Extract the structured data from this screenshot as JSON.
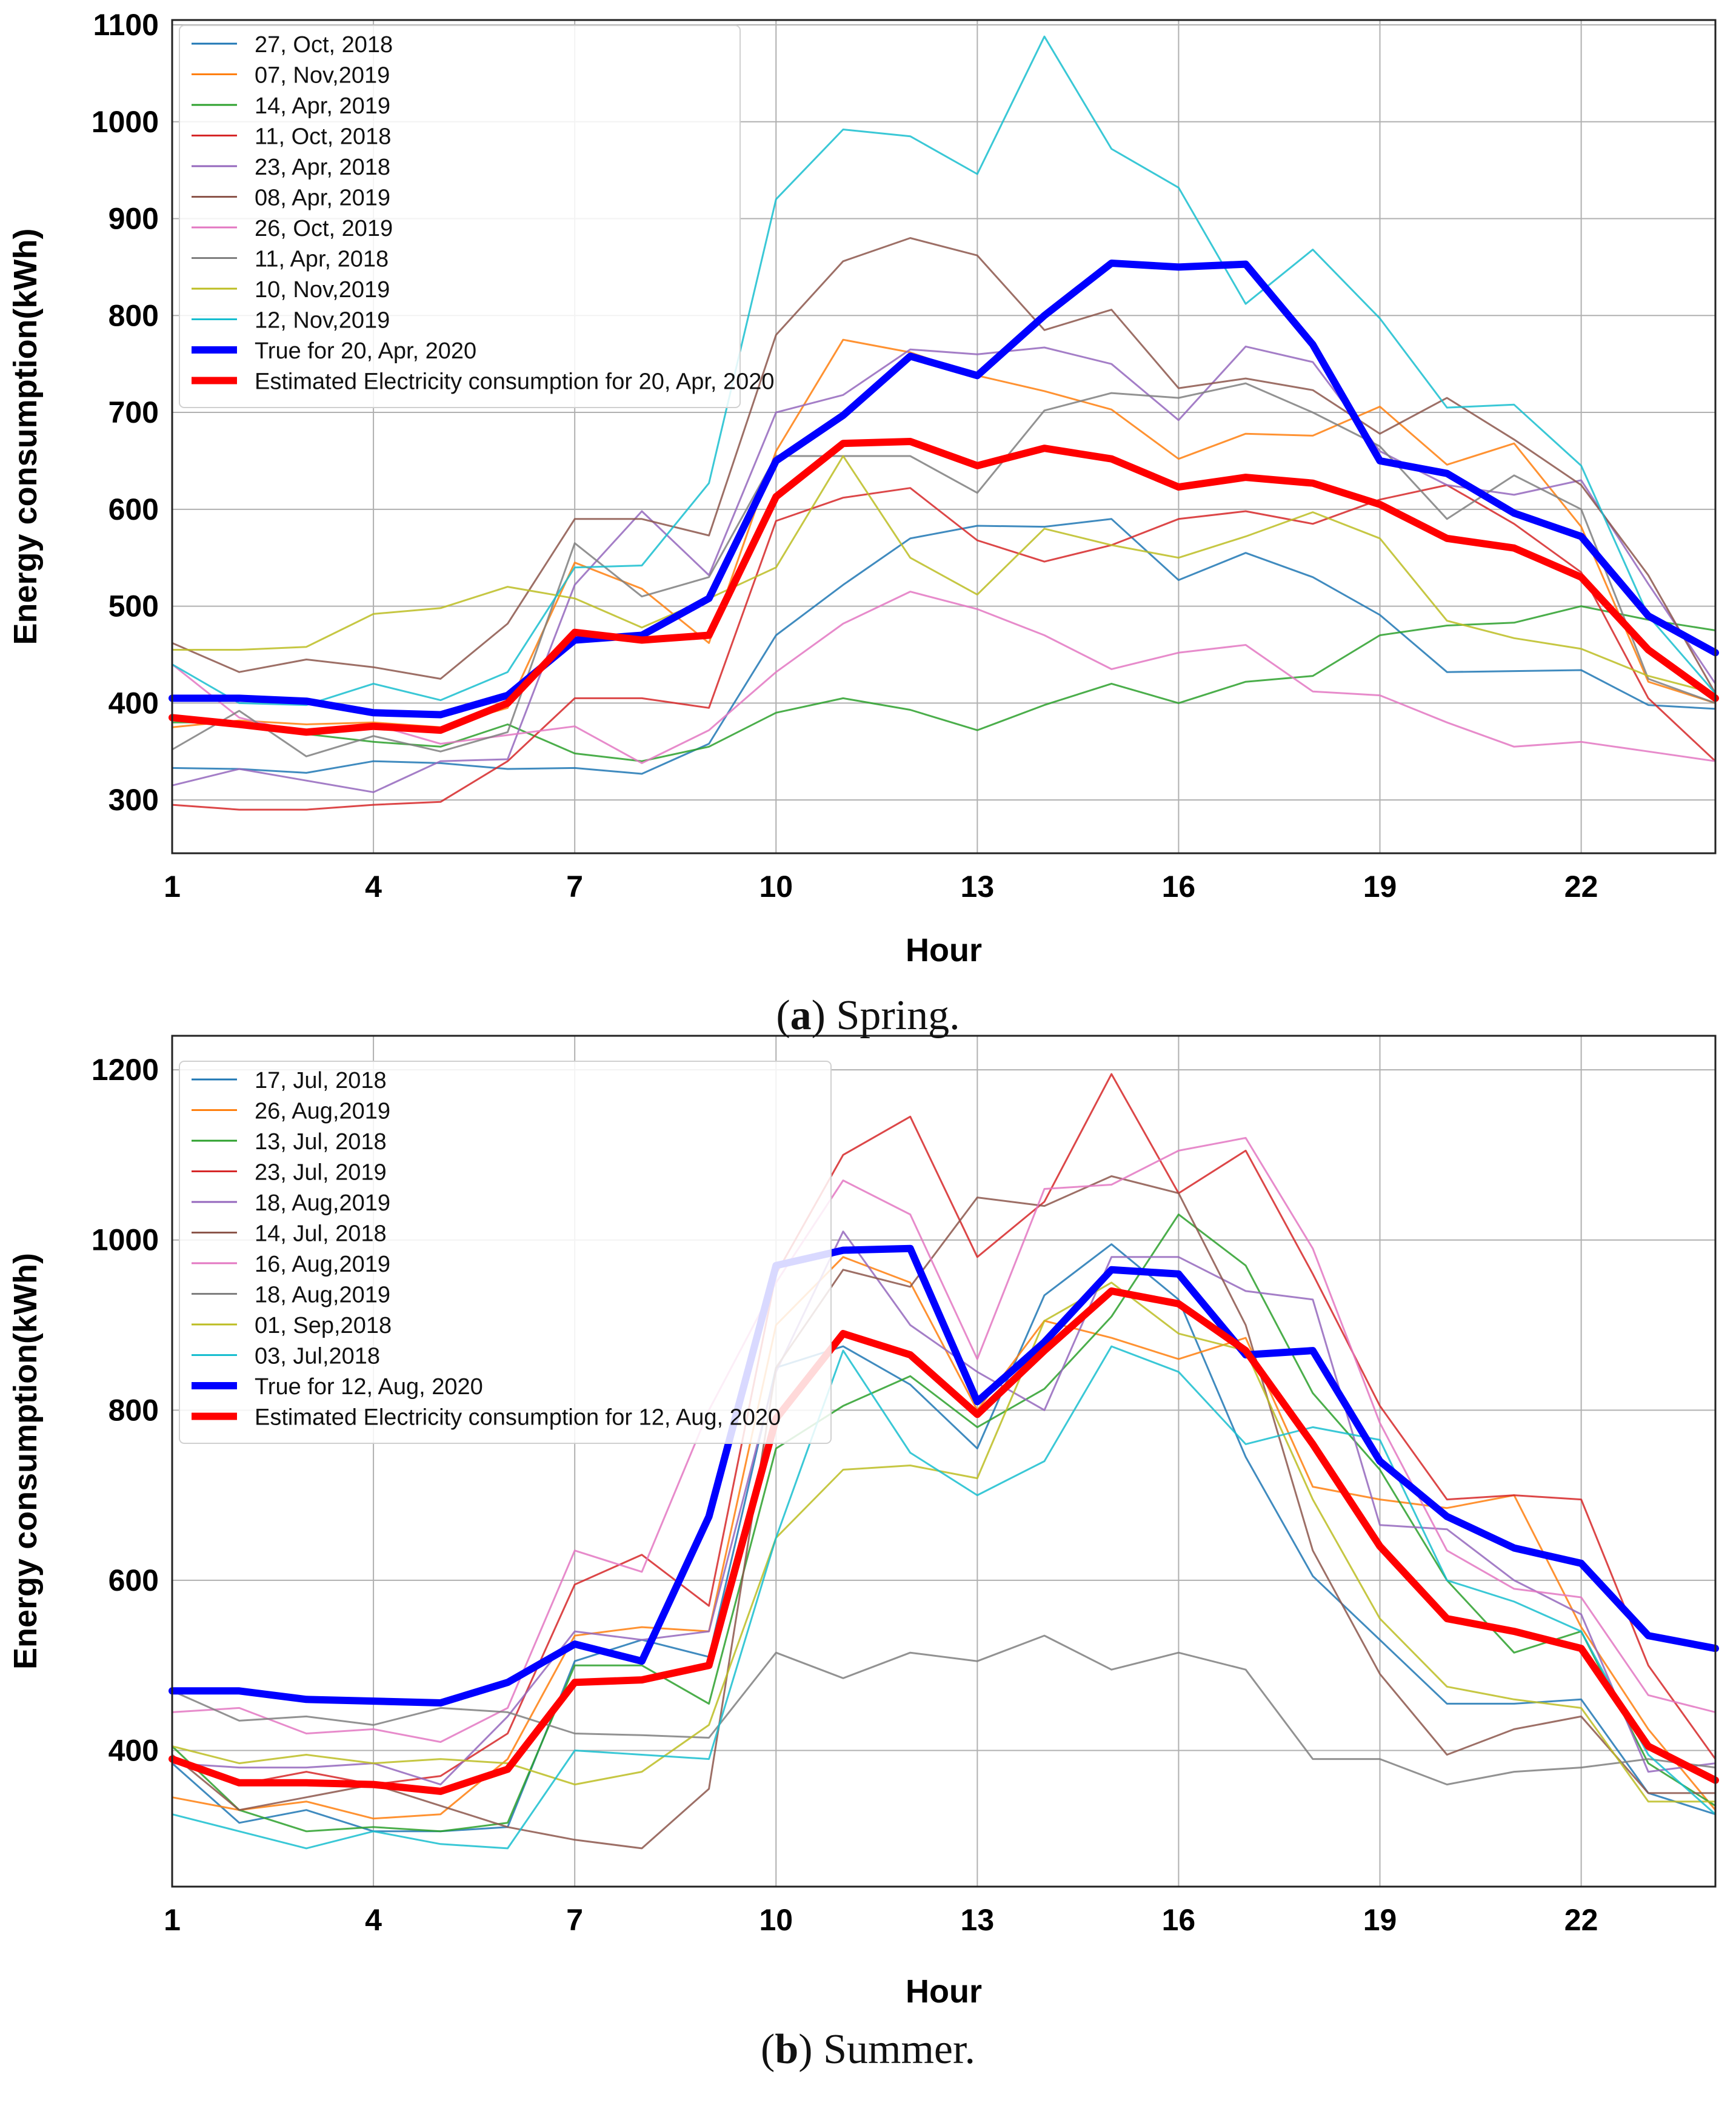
{
  "figure": {
    "captions": [
      {
        "letter": "a",
        "text": "Spring."
      },
      {
        "letter": "b",
        "text": "Summer."
      }
    ]
  },
  "chart_data": [
    {
      "type": "line",
      "xlabel": "Hour",
      "ylabel": "Energy consumption(kWh)",
      "xlim": [
        1,
        24
      ],
      "ylim": [
        245,
        1105
      ],
      "xticks": [
        1,
        4,
        7,
        10,
        13,
        16,
        19,
        22
      ],
      "yticks": [
        300,
        400,
        500,
        600,
        700,
        800,
        900,
        1000,
        1100
      ],
      "grid": true,
      "legend_position": "top-left",
      "x": [
        1,
        2,
        3,
        4,
        5,
        6,
        7,
        8,
        9,
        10,
        11,
        12,
        13,
        14,
        15,
        16,
        17,
        18,
        19,
        20,
        21,
        22,
        23,
        24
      ],
      "series": [
        {
          "name": "27, Oct, 2018",
          "color": "#1f77b4",
          "width": 1,
          "values": [
            333,
            332,
            328,
            340,
            338,
            332,
            333,
            327,
            358,
            470,
            522,
            570,
            583,
            582,
            590,
            527,
            555,
            530,
            491,
            432,
            433,
            434,
            398,
            394
          ]
        },
        {
          "name": "07, Nov,2019",
          "color": "#ff7f0e",
          "width": 1,
          "values": [
            375,
            382,
            378,
            380,
            375,
            395,
            545,
            518,
            462,
            660,
            775,
            762,
            738,
            722,
            703,
            652,
            678,
            676,
            706,
            646,
            668,
            582,
            422,
            400
          ]
        },
        {
          "name": "14, Apr, 2019",
          "color": "#2ca02c",
          "width": 1,
          "values": [
            380,
            380,
            368,
            360,
            355,
            378,
            348,
            340,
            355,
            390,
            405,
            393,
            372,
            398,
            420,
            400,
            422,
            428,
            470,
            480,
            483,
            500,
            486,
            475
          ]
        },
        {
          "name": "11, Oct, 2018",
          "color": "#d62728",
          "width": 1,
          "values": [
            295,
            290,
            290,
            295,
            298,
            340,
            405,
            405,
            395,
            588,
            612,
            622,
            568,
            546,
            563,
            590,
            598,
            585,
            610,
            625,
            585,
            535,
            405,
            340
          ]
        },
        {
          "name": "23, Apr, 2018",
          "color": "#9467bd",
          "width": 1,
          "values": [
            315,
            332,
            320,
            308,
            340,
            342,
            522,
            598,
            532,
            700,
            718,
            765,
            760,
            767,
            750,
            692,
            768,
            752,
            660,
            625,
            615,
            630,
            523,
            420
          ]
        },
        {
          "name": "08, Apr, 2019",
          "color": "#8c564b",
          "width": 1,
          "values": [
            462,
            432,
            445,
            437,
            425,
            482,
            590,
            590,
            573,
            780,
            856,
            880,
            862,
            785,
            806,
            725,
            735,
            723,
            678,
            715,
            672,
            625,
            532,
            410
          ]
        },
        {
          "name": "26, Oct, 2019",
          "color": "#e377c2",
          "width": 1,
          "values": [
            440,
            385,
            368,
            378,
            358,
            367,
            376,
            338,
            372,
            432,
            482,
            515,
            497,
            470,
            435,
            452,
            460,
            412,
            408,
            380,
            355,
            360,
            350,
            340
          ]
        },
        {
          "name": "11, Apr, 2018",
          "color": "#7f7f7f",
          "width": 1,
          "values": [
            352,
            392,
            345,
            366,
            350,
            370,
            565,
            510,
            530,
            655,
            655,
            655,
            617,
            702,
            720,
            715,
            730,
            700,
            665,
            590,
            635,
            600,
            425,
            400
          ]
        },
        {
          "name": "10, Nov,2019",
          "color": "#bcbd22",
          "width": 1,
          "values": [
            455,
            455,
            458,
            492,
            498,
            520,
            508,
            478,
            508,
            540,
            655,
            550,
            512,
            580,
            563,
            550,
            572,
            597,
            570,
            485,
            467,
            456,
            428,
            410
          ]
        },
        {
          "name": "12, Nov,2019",
          "color": "#17becf",
          "width": 1,
          "values": [
            440,
            400,
            398,
            420,
            403,
            432,
            540,
            542,
            627,
            920,
            992,
            985,
            946,
            1088,
            972,
            932,
            812,
            868,
            797,
            705,
            708,
            645,
            490,
            410
          ]
        },
        {
          "name": "True for 20, Apr, 2020",
          "color": "#0000ff",
          "width": 4,
          "values": [
            405,
            405,
            402,
            390,
            388,
            408,
            465,
            470,
            508,
            650,
            697,
            758,
            738,
            800,
            854,
            850,
            853,
            770,
            650,
            637,
            596,
            572,
            490,
            452
          ]
        },
        {
          "name": "Estimated Electricity consumption for 20, Apr, 2020",
          "color": "#ff0000",
          "width": 4,
          "values": [
            385,
            378,
            370,
            376,
            372,
            400,
            473,
            465,
            470,
            613,
            668,
            670,
            645,
            663,
            652,
            623,
            633,
            627,
            605,
            570,
            560,
            530,
            455,
            405
          ]
        }
      ]
    },
    {
      "type": "line",
      "xlabel": "Hour",
      "ylabel": "Energy consumption(kWh)",
      "xlim": [
        1,
        24
      ],
      "ylim": [
        240,
        1240
      ],
      "xticks": [
        1,
        4,
        7,
        10,
        13,
        16,
        19,
        22
      ],
      "yticks": [
        400,
        600,
        800,
        1000,
        1200
      ],
      "grid": true,
      "legend_position": "top-left",
      "x": [
        1,
        2,
        3,
        4,
        5,
        6,
        7,
        8,
        9,
        10,
        11,
        12,
        13,
        14,
        15,
        16,
        17,
        18,
        19,
        20,
        21,
        22,
        23,
        24
      ],
      "series": [
        {
          "name": "17, Jul, 2018",
          "color": "#1f77b4",
          "width": 1,
          "values": [
            385,
            315,
            330,
            305,
            305,
            310,
            505,
            530,
            510,
            850,
            875,
            830,
            755,
            935,
            995,
            930,
            745,
            605,
            530,
            455,
            455,
            460,
            350,
            325
          ]
        },
        {
          "name": "26, Aug,2019",
          "color": "#ff7f0e",
          "width": 1,
          "values": [
            345,
            330,
            340,
            320,
            325,
            390,
            535,
            545,
            540,
            900,
            980,
            950,
            800,
            905,
            885,
            860,
            885,
            710,
            695,
            685,
            700,
            545,
            425,
            330
          ]
        },
        {
          "name": "13, Jul, 2018",
          "color": "#2ca02c",
          "width": 1,
          "values": [
            405,
            330,
            305,
            310,
            305,
            315,
            500,
            500,
            455,
            755,
            805,
            840,
            780,
            825,
            910,
            1030,
            970,
            820,
            730,
            600,
            515,
            540,
            385,
            335
          ]
        },
        {
          "name": "23, Jul, 2019",
          "color": "#d62728",
          "width": 1,
          "values": [
            390,
            360,
            375,
            360,
            370,
            420,
            595,
            630,
            570,
            960,
            1100,
            1145,
            980,
            1045,
            1195,
            1055,
            1105,
            960,
            805,
            695,
            700,
            695,
            500,
            390
          ]
        },
        {
          "name": "18, Aug,2019",
          "color": "#9467bd",
          "width": 1,
          "values": [
            385,
            380,
            380,
            385,
            360,
            440,
            540,
            530,
            540,
            845,
            1010,
            900,
            845,
            800,
            980,
            980,
            940,
            930,
            665,
            660,
            600,
            560,
            375,
            385
          ]
        },
        {
          "name": "14, Jul, 2018",
          "color": "#8c564b",
          "width": 1,
          "values": [
            395,
            330,
            345,
            360,
            335,
            310,
            295,
            285,
            355,
            850,
            965,
            945,
            1050,
            1040,
            1075,
            1055,
            900,
            635,
            490,
            395,
            425,
            440,
            350,
            350
          ]
        },
        {
          "name": "16, Aug,2019",
          "color": "#e377c2",
          "width": 1,
          "values": [
            445,
            450,
            420,
            425,
            410,
            450,
            635,
            610,
            800,
            950,
            1070,
            1030,
            860,
            1060,
            1065,
            1105,
            1120,
            990,
            785,
            635,
            590,
            580,
            465,
            445
          ]
        },
        {
          "name": "18, Aug,2019",
          "color": "#7f7f7f",
          "width": 1,
          "values": [
            470,
            435,
            440,
            430,
            450,
            445,
            420,
            418,
            415,
            515,
            485,
            515,
            505,
            535,
            495,
            515,
            495,
            390,
            390,
            360,
            375,
            380,
            390,
            380
          ]
        },
        {
          "name": "01, Sep,2018",
          "color": "#bcbd22",
          "width": 1,
          "values": [
            405,
            385,
            395,
            385,
            390,
            385,
            360,
            375,
            430,
            650,
            730,
            735,
            720,
            905,
            950,
            890,
            870,
            695,
            555,
            475,
            460,
            450,
            340,
            340
          ]
        },
        {
          "name": "03, Jul,2018",
          "color": "#17becf",
          "width": 1,
          "values": [
            325,
            305,
            285,
            305,
            290,
            285,
            400,
            395,
            390,
            650,
            870,
            750,
            700,
            740,
            875,
            845,
            760,
            780,
            765,
            600,
            575,
            540,
            395,
            325
          ]
        },
        {
          "name": "True for 12, Aug, 2020",
          "color": "#0000ff",
          "width": 4,
          "values": [
            470,
            470,
            460,
            458,
            456,
            480,
            525,
            505,
            675,
            970,
            988,
            990,
            810,
            880,
            965,
            960,
            865,
            870,
            740,
            675,
            638,
            620,
            535,
            520
          ]
        },
        {
          "name": "Estimated Electricity consumption for 12, Aug, 2020",
          "color": "#ff0000",
          "width": 4,
          "values": [
            390,
            362,
            362,
            360,
            352,
            378,
            480,
            483,
            500,
            790,
            890,
            865,
            795,
            870,
            940,
            925,
            870,
            760,
            640,
            555,
            540,
            520,
            405,
            365
          ]
        }
      ]
    }
  ]
}
